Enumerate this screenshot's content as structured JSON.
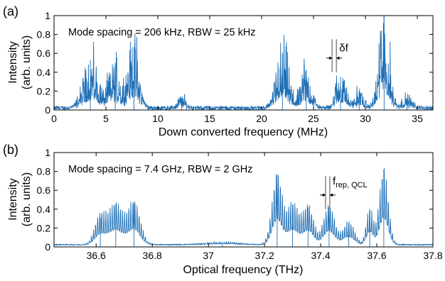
{
  "chart_data": [
    {
      "panel": "(a)",
      "type": "line",
      "annotation": "Mode spacing = 206 kHz, RBW = 25 kHz",
      "marker_label": "δf",
      "marker_position": 27,
      "xlabel": "Down converted frequency (MHz)",
      "ylabel": [
        "Intensity",
        "(arb. units)"
      ],
      "xlim": [
        0,
        36.5
      ],
      "ylim": [
        0,
        1
      ],
      "xticks": [
        0,
        5,
        10,
        15,
        20,
        25,
        30,
        35
      ],
      "xtick_labels": [
        "0",
        "5",
        "10",
        "15",
        "20",
        "25",
        "30",
        "35"
      ],
      "yticks": [
        0,
        0.2,
        0.4,
        0.6,
        0.8,
        1
      ],
      "ytick_labels": [
        "0",
        "0.2",
        "0.4",
        "0.6",
        "0.8",
        "1"
      ],
      "color": "#1f6fb5",
      "baseline": 0.03,
      "clusters": [
        {
          "center": 3.5,
          "width": 0.7,
          "peak": 0.53
        },
        {
          "center": 5.9,
          "width": 0.6,
          "peak": 0.5
        },
        {
          "center": 7.7,
          "width": 0.5,
          "peak": 0.67
        },
        {
          "center": 12.3,
          "width": 0.4,
          "peak": 0.12
        },
        {
          "center": 22.0,
          "width": 0.6,
          "peak": 0.61
        },
        {
          "center": 24.3,
          "width": 0.5,
          "peak": 0.43
        },
        {
          "center": 27.6,
          "width": 0.5,
          "peak": 0.35
        },
        {
          "center": 29.4,
          "width": 0.4,
          "peak": 0.2
        },
        {
          "center": 31.8,
          "width": 0.5,
          "peak": 1.0
        },
        {
          "center": 34.0,
          "width": 0.5,
          "peak": 0.12
        }
      ]
    },
    {
      "panel": "(b)",
      "type": "line",
      "annotation": "Mode spacing = 7.4 GHz, RBW = 2 GHz",
      "marker_label": "f",
      "marker_label_sub": "rep, QCL",
      "marker_position": 37.425,
      "xlabel": "Optical frequency (THz)",
      "ylabel": [
        "Intensity",
        "(arb. units)"
      ],
      "xlim": [
        36.45,
        37.8
      ],
      "ylim": [
        0,
        1
      ],
      "xticks": [
        36.6,
        36.8,
        37,
        37.2,
        37.4,
        37.6,
        37.8
      ],
      "xtick_labels": [
        "36.6",
        "36.8",
        "37",
        "37.2",
        "37.4",
        "37.6",
        "37.8"
      ],
      "yticks": [
        0,
        0.2,
        0.4,
        0.6,
        0.8,
        1
      ],
      "ytick_labels": [
        "0",
        "0.2",
        "0.4",
        "0.6",
        "0.8",
        "1"
      ],
      "color": "#1f6fb5",
      "baseline": 0.03,
      "mode_spacing": 0.0074,
      "clusters": [
        {
          "center": 36.615,
          "width": 0.02,
          "peak": 0.31
        },
        {
          "center": 36.67,
          "width": 0.025,
          "peak": 0.45
        },
        {
          "center": 36.735,
          "width": 0.022,
          "peak": 0.46
        },
        {
          "center": 37.05,
          "width": 0.06,
          "peak": 0.03
        },
        {
          "center": 37.245,
          "width": 0.018,
          "peak": 0.76
        },
        {
          "center": 37.3,
          "width": 0.02,
          "peak": 0.45
        },
        {
          "center": 37.355,
          "width": 0.02,
          "peak": 0.42
        },
        {
          "center": 37.43,
          "width": 0.02,
          "peak": 0.42
        },
        {
          "center": 37.5,
          "width": 0.02,
          "peak": 0.25
        },
        {
          "center": 37.575,
          "width": 0.012,
          "peak": 0.4
        },
        {
          "center": 37.625,
          "width": 0.016,
          "peak": 0.82
        }
      ]
    }
  ]
}
